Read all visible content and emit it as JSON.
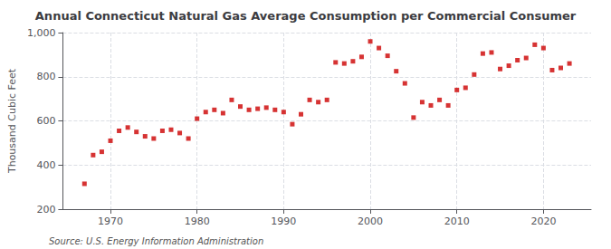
{
  "chart_data": {
    "type": "scatter",
    "title": "Annual Connecticut Natural Gas Average Consumption per Commercial Consumer",
    "ylabel": "Thousand Cubic Feet",
    "annotations": [
      "Source: U.S. Energy Information Administration"
    ],
    "x": [
      1967,
      1968,
      1969,
      1970,
      1971,
      1972,
      1973,
      1974,
      1975,
      1976,
      1977,
      1978,
      1979,
      1980,
      1981,
      1982,
      1983,
      1984,
      1985,
      1986,
      1987,
      1988,
      1989,
      1990,
      1991,
      1992,
      1993,
      1994,
      1995,
      1996,
      1997,
      1998,
      1999,
      2000,
      2001,
      2002,
      2003,
      2004,
      2005,
      2006,
      2007,
      2008,
      2009,
      2010,
      2011,
      2012,
      2013,
      2014,
      2015,
      2016,
      2017,
      2018,
      2019,
      2020,
      2021,
      2022,
      2023
    ],
    "values": [
      315,
      445,
      460,
      510,
      555,
      570,
      550,
      530,
      520,
      555,
      560,
      545,
      520,
      610,
      640,
      650,
      635,
      695,
      665,
      650,
      655,
      660,
      650,
      640,
      585,
      630,
      695,
      685,
      695,
      865,
      860,
      870,
      890,
      960,
      930,
      895,
      825,
      770,
      615,
      685,
      670,
      695,
      670,
      740,
      750,
      810,
      905,
      910,
      835,
      850,
      875,
      885,
      945,
      930,
      830,
      840,
      860
    ],
    "color": "#cc0000",
    "marker": "square",
    "xlim": [
      1964.5,
      2025.5
    ],
    "xticks": [
      1970,
      1980,
      1990,
      2000,
      2010,
      2020
    ],
    "ylim": [
      200,
      1000
    ],
    "yticks": [
      200,
      400,
      600,
      800,
      {
        "value": 1000,
        "label": "1,000"
      }
    ],
    "grid": true
  }
}
